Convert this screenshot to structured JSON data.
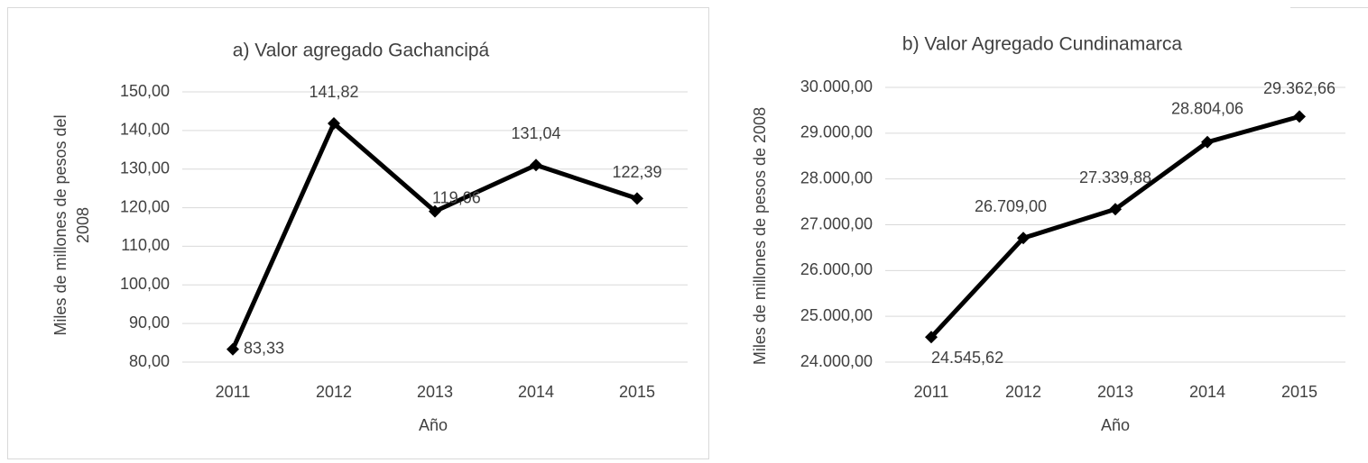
{
  "chart_data": [
    {
      "type": "line",
      "title": "a) Valor agregado Gachancipá",
      "y_label": [
        "Miles de millones de pesos del",
        "2008"
      ],
      "x_label": "Año",
      "categories": [
        "2011",
        "2012",
        "2013",
        "2014",
        "2015"
      ],
      "series": [
        {
          "name": "Valor agregado Gachancipá",
          "color": "#000000",
          "values": [
            83.33,
            141.82,
            119.06,
            131.04,
            122.39
          ],
          "value_labels": [
            "83,33",
            "141,82",
            "119,06",
            "131,04",
            "122,39"
          ]
        }
      ],
      "ylim": [
        80,
        150
      ],
      "yticks": [
        {
          "value": 80,
          "label": "80,00"
        },
        {
          "value": 90,
          "label": "90,00"
        },
        {
          "value": 100,
          "label": "100,00"
        },
        {
          "value": 110,
          "label": "110,00"
        },
        {
          "value": 120,
          "label": "120,00"
        },
        {
          "value": 130,
          "label": "130,00"
        },
        {
          "value": 140,
          "label": "140,00"
        },
        {
          "value": 150,
          "label": "150,00"
        }
      ],
      "grid": true
    },
    {
      "type": "line",
      "title": "b) Valor Agregado Cundinamarca",
      "y_label": [
        "Miles de millones de pesos de 2008"
      ],
      "x_label": "Año",
      "categories": [
        "2011",
        "2012",
        "2013",
        "2014",
        "2015"
      ],
      "series": [
        {
          "name": "Valor Agregado Cundinamarca",
          "color": "#000000",
          "values": [
            24545.62,
            26709.0,
            27339.88,
            28804.06,
            29362.66
          ],
          "value_labels": [
            "24.545,62",
            "26.709,00",
            "27.339,88",
            "28.804,06",
            "29.362,66"
          ]
        }
      ],
      "ylim": [
        24000,
        30000
      ],
      "yticks": [
        {
          "value": 24000,
          "label": "24.000,00"
        },
        {
          "value": 25000,
          "label": "25.000,00"
        },
        {
          "value": 26000,
          "label": "26.000,00"
        },
        {
          "value": 27000,
          "label": "27.000,00"
        },
        {
          "value": 28000,
          "label": "28.000,00"
        },
        {
          "value": 29000,
          "label": "29.000,00"
        },
        {
          "value": 30000,
          "label": "30.000,00"
        }
      ],
      "grid": true
    }
  ]
}
